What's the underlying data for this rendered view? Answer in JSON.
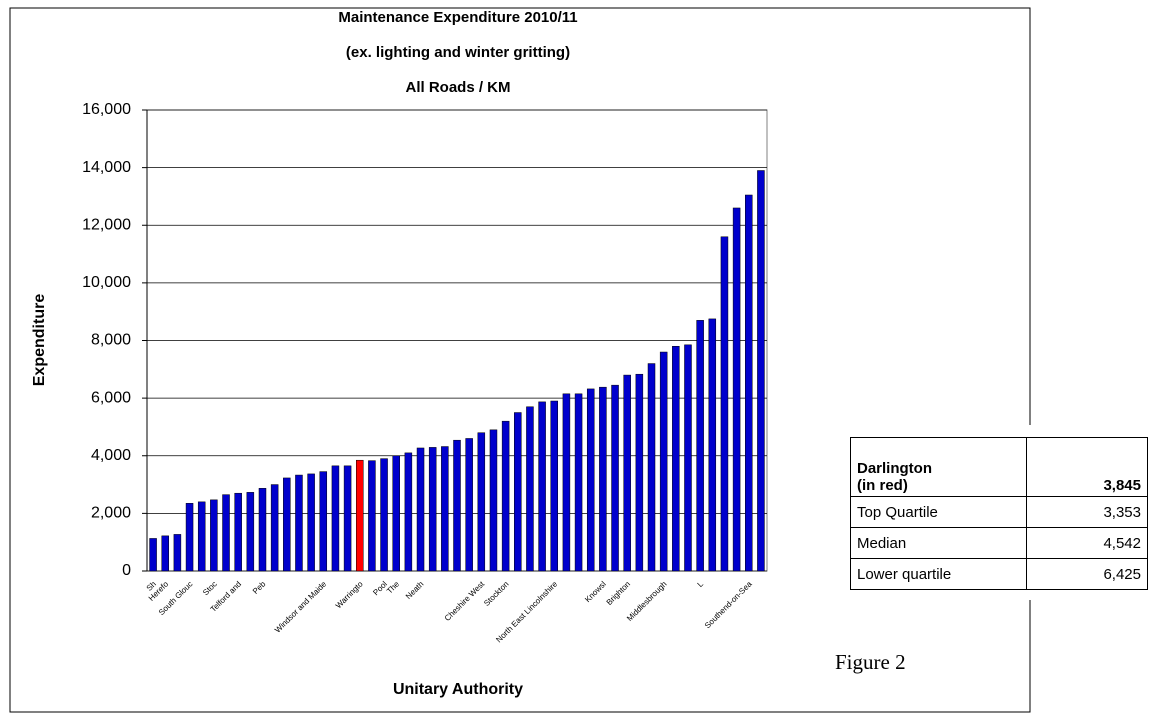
{
  "chart_data": {
    "type": "bar",
    "title": [
      "Maintenance Expenditure 2010/11",
      "(ex. lighting and winter gritting)",
      "All Roads / KM"
    ],
    "y_label": "Expenditure",
    "x_label": "Unitary Authority",
    "categories": [
      "Sh",
      "Herefo",
      null,
      "South Glouc",
      null,
      "Stoc",
      null,
      "Telford and",
      null,
      "Peb",
      null,
      null,
      null,
      null,
      "Windsor and Maide",
      null,
      null,
      "Warringto",
      null,
      "Pool",
      "The",
      null,
      "Neath",
      null,
      null,
      null,
      null,
      "Cheshire West",
      null,
      "Stockton",
      null,
      null,
      null,
      "North East Lincolnshire",
      null,
      null,
      null,
      "Knowsl",
      null,
      "Brighton",
      null,
      null,
      "Middlesbrough",
      null,
      null,
      "L",
      null,
      null,
      null,
      "Southend-on-Sea",
      null
    ],
    "values": [
      1130,
      1220,
      1270,
      2350,
      2400,
      2470,
      2650,
      2700,
      2730,
      2870,
      3000,
      3230,
      3330,
      3370,
      3450,
      3650,
      3650,
      3845,
      3830,
      3900,
      4000,
      4100,
      4270,
      4290,
      4320,
      4540,
      4600,
      4800,
      4900,
      5200,
      5500,
      5700,
      5870,
      5900,
      6150,
      6150,
      6320,
      6380,
      6450,
      6800,
      6830,
      7200,
      7600,
      7800,
      7850,
      8700,
      8750,
      11600,
      12600,
      13050,
      13900
    ],
    "color": "#0000cc",
    "highlight": {
      "index": 17,
      "color": "#ff0000"
    },
    "ylim": [
      0,
      16000
    ],
    "yticks": [
      0,
      {
        "value": 2000,
        "label": "2,000"
      },
      {
        "value": 4000,
        "label": "4,000"
      },
      {
        "value": 6000,
        "label": "6,000"
      },
      {
        "value": 8000,
        "label": "8,000"
      },
      {
        "value": 10000,
        "label": "10,000"
      },
      {
        "value": 12000,
        "label": "12,000"
      },
      {
        "value": 14000,
        "label": "14,000"
      },
      {
        "value": 16000,
        "label": "16,000"
      }
    ],
    "grid": true
  },
  "table": {
    "rows": [
      [
        "Darlington\n (in red)",
        "3,845"
      ],
      [
        "Top Quartile",
        "3,353"
      ],
      [
        "Median",
        "4,542"
      ],
      [
        "Lower quartile",
        "6,425"
      ]
    ]
  },
  "caption": "Figure 2"
}
